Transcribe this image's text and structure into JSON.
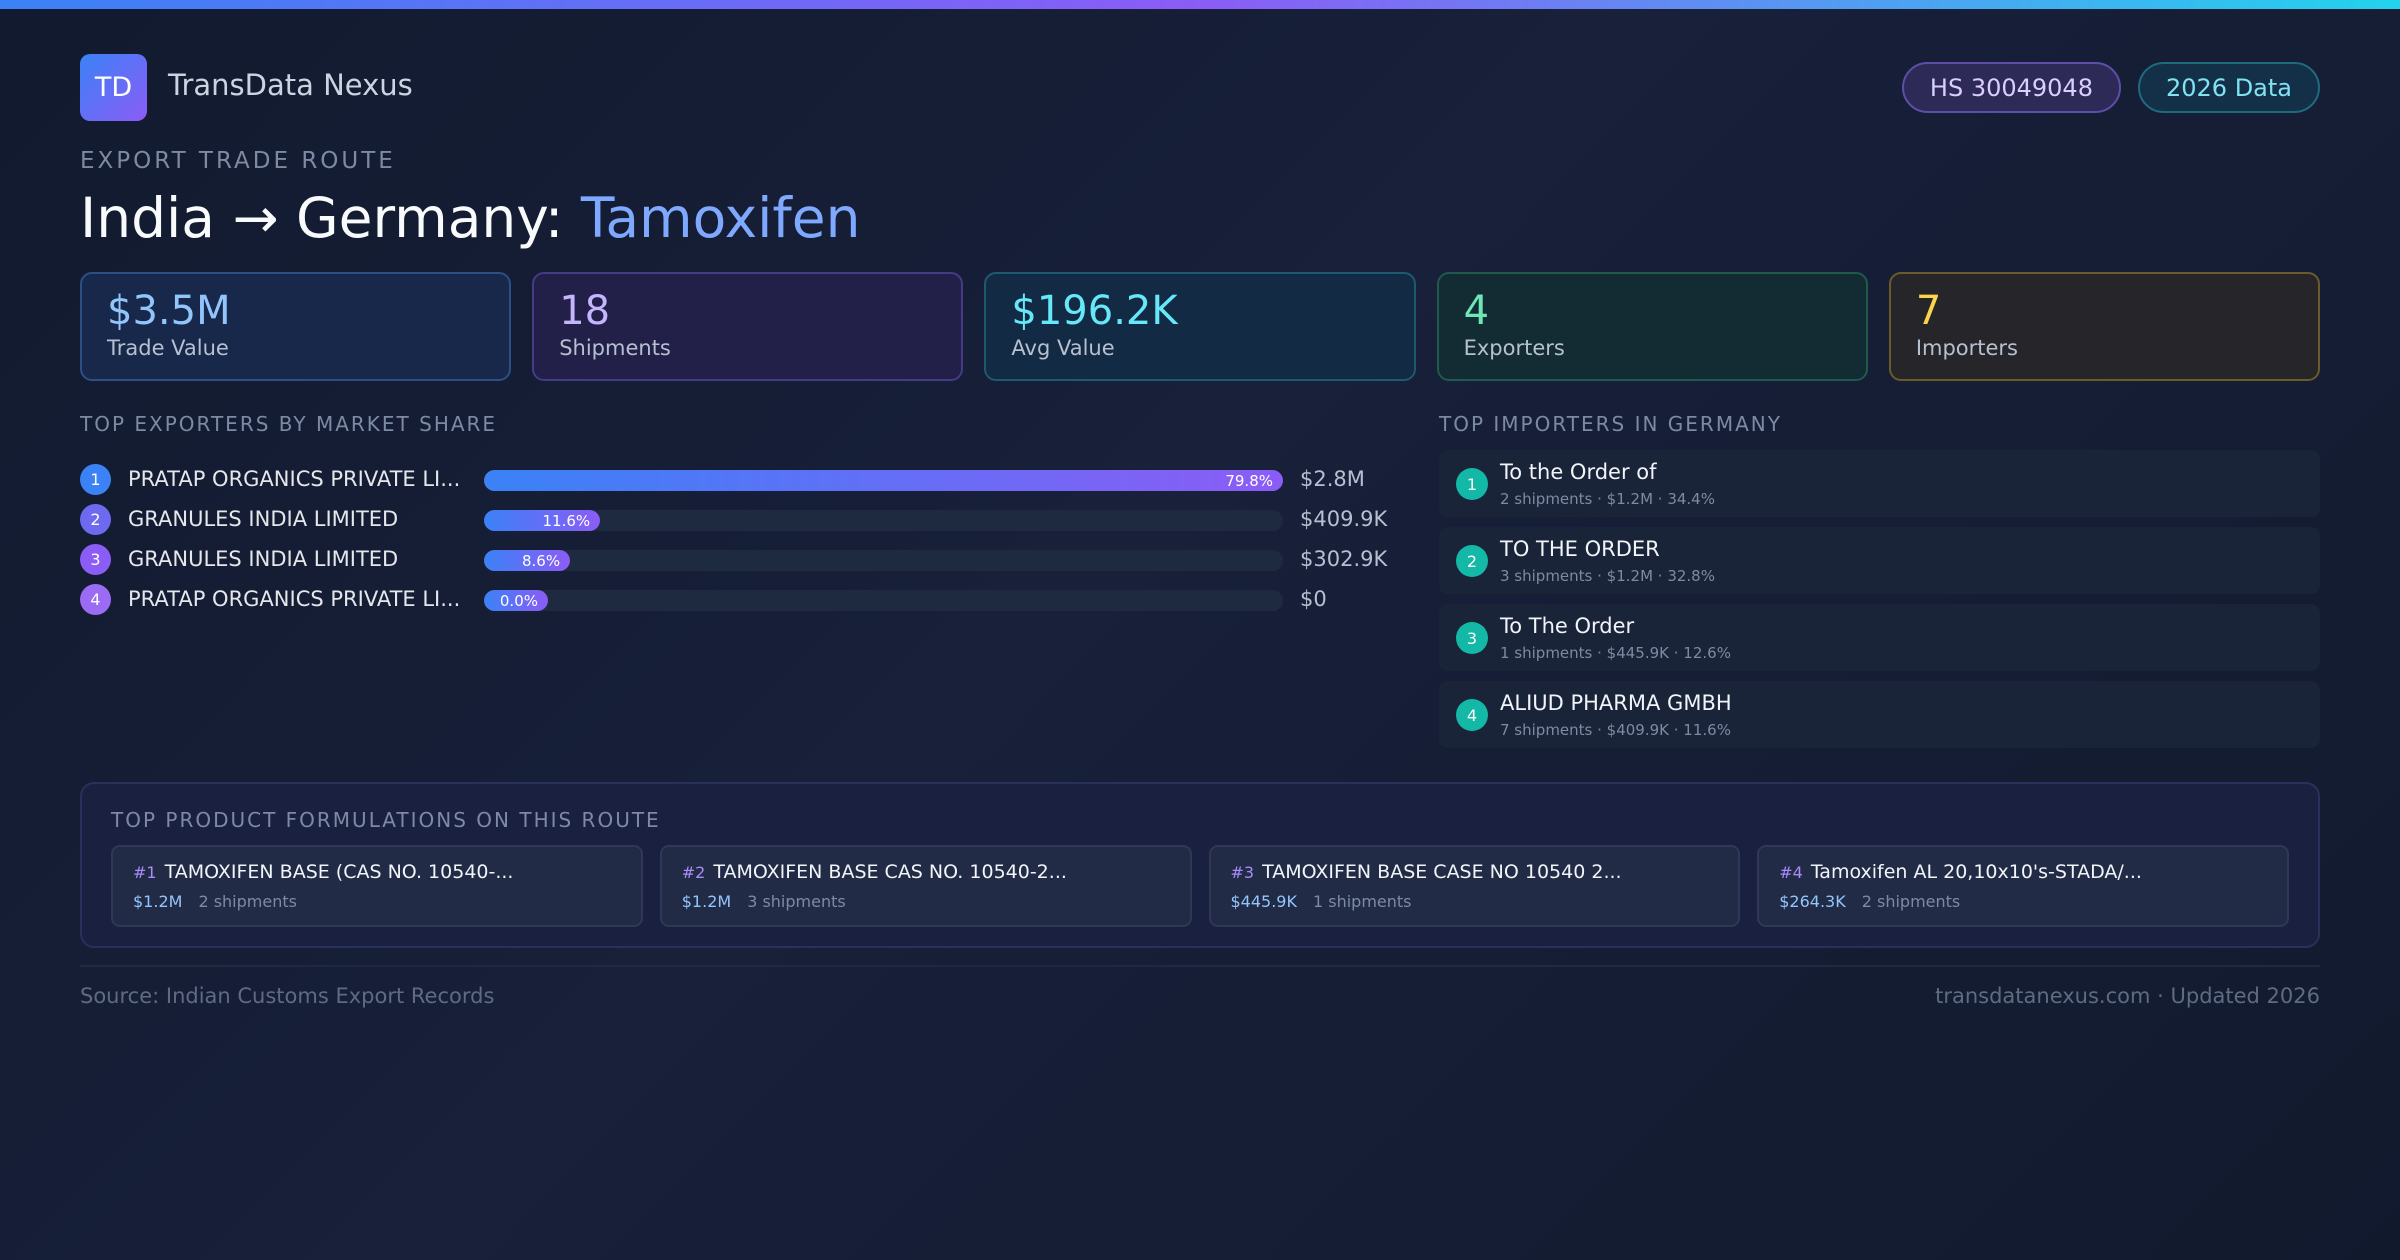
{
  "header": {
    "logo": "TD",
    "brand": "TransData Nexus",
    "badges": [
      "HS 30049048",
      "2026 Data"
    ]
  },
  "eyebrow": "EXPORT TRADE ROUTE",
  "title": {
    "route": "India → Germany:",
    "product": "Tamoxifen"
  },
  "stats": [
    {
      "value": "$3.5M",
      "label": "Trade Value"
    },
    {
      "value": "18",
      "label": "Shipments"
    },
    {
      "value": "$196.2K",
      "label": "Avg Value"
    },
    {
      "value": "4",
      "label": "Exporters"
    },
    {
      "value": "7",
      "label": "Importers"
    }
  ],
  "exporters": {
    "title": "TOP EXPORTERS BY MARKET SHARE",
    "rows": [
      {
        "rank": 1,
        "name": "PRATAP ORGANICS PRIVATE LI...",
        "share": 79.8,
        "share_label": "79.8%",
        "value": "$2.8M"
      },
      {
        "rank": 2,
        "name": "GRANULES INDIA LIMITED",
        "share": 11.6,
        "share_label": "11.6%",
        "value": "$409.9K"
      },
      {
        "rank": 3,
        "name": "GRANULES INDIA LIMITED",
        "share": 8.6,
        "share_label": "8.6%",
        "value": "$302.9K"
      },
      {
        "rank": 4,
        "name": "PRATAP ORGANICS PRIVATE LI...",
        "share": 0,
        "share_label": "0.0%",
        "value": "$0"
      }
    ]
  },
  "importers": {
    "title": "TOP IMPORTERS IN GERMANY",
    "rows": [
      {
        "rank": 1,
        "name": "To the Order of",
        "detail": "2 shipments · $1.2M · 34.4%"
      },
      {
        "rank": 2,
        "name": "TO THE ORDER",
        "detail": "3 shipments · $1.2M · 32.8%"
      },
      {
        "rank": 3,
        "name": "To The Order",
        "detail": "1 shipments · $445.9K · 12.6%"
      },
      {
        "rank": 4,
        "name": "ALIUD PHARMA GMBH",
        "detail": "7 shipments · $409.9K · 11.6%"
      }
    ]
  },
  "formulations": {
    "title": "TOP PRODUCT FORMULATIONS ON THIS ROUTE",
    "items": [
      {
        "rank": "#1",
        "name": "TAMOXIFEN BASE (CAS NO. 10540-...",
        "value": "$1.2M",
        "shipments": "2 shipments"
      },
      {
        "rank": "#2",
        "name": "TAMOXIFEN BASE CAS NO. 10540-2...",
        "value": "$1.2M",
        "shipments": "3 shipments"
      },
      {
        "rank": "#3",
        "name": "TAMOXIFEN BASE CASE NO 10540 2...",
        "value": "$445.9K",
        "shipments": "1 shipments"
      },
      {
        "rank": "#4",
        "name": "Tamoxifen AL 20,10x10's-STADA/...",
        "value": "$264.3K",
        "shipments": "2 shipments"
      }
    ]
  },
  "footer": {
    "source": "Source: Indian Customs Export Records",
    "site": "transdatanexus.com · Updated 2026"
  }
}
